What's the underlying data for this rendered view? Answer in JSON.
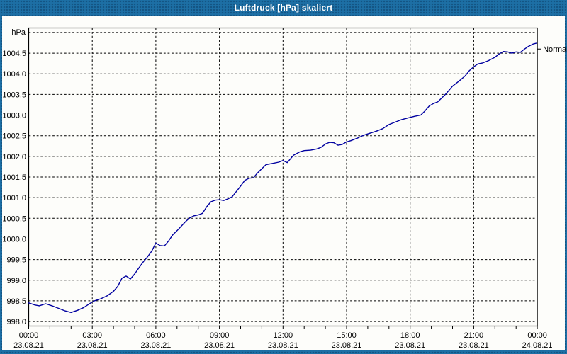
{
  "window": {
    "title": "Luftdruck [hPa] skaliert"
  },
  "colors": {
    "frame_blue": "#1d6fa5",
    "content_bg": "#fdfdfa",
    "grid_color": "#000000",
    "curve_color": "#0000a0",
    "title_text": "#ffffff",
    "label_color": "#000000"
  },
  "chart_data": {
    "type": "line",
    "title": "Luftdruck [hPa] skaliert",
    "ylabel": "hPa",
    "xlabel": "",
    "grid": true,
    "legend_position": "none",
    "ylim": [
      997.89,
      1005.11
    ],
    "ygrid_values": [
      998.0,
      998.5,
      999.0,
      999.5,
      1000.0,
      1000.5,
      1001.0,
      1001.5,
      1002.0,
      1002.5,
      1003.0,
      1003.5,
      1004.0,
      1004.5,
      1005.0
    ],
    "ytick_labels": [
      {
        "value": 998.0,
        "label": "998,0"
      },
      {
        "value": 998.5,
        "label": "998,5"
      },
      {
        "value": 999.0,
        "label": "999,0"
      },
      {
        "value": 999.5,
        "label": "999,5"
      },
      {
        "value": 1000.0,
        "label": "1000,0"
      },
      {
        "value": 1000.5,
        "label": "1000,5"
      },
      {
        "value": 1001.0,
        "label": "1001,0"
      },
      {
        "value": 1001.5,
        "label": "1001,5"
      },
      {
        "value": 1002.0,
        "label": "1002,0"
      },
      {
        "value": 1002.5,
        "label": "1002,5"
      },
      {
        "value": 1003.0,
        "label": "1003,0"
      },
      {
        "value": 1003.5,
        "label": "1003,5"
      },
      {
        "value": 1004.0,
        "label": "1004,0"
      },
      {
        "value": 1004.5,
        "label": "1004,5"
      }
    ],
    "x_hours_range": [
      0,
      24
    ],
    "minor_tick_every_hours": 1,
    "vgrid_every_hours": 3,
    "xticks": [
      {
        "hour": 0,
        "time": "00:00",
        "date": "23.08.21"
      },
      {
        "hour": 3,
        "time": "03:00",
        "date": "23.08.21"
      },
      {
        "hour": 6,
        "time": "06:00",
        "date": "23.08.21"
      },
      {
        "hour": 9,
        "time": "09:00",
        "date": "23.08.21"
      },
      {
        "hour": 12,
        "time": "12:00",
        "date": "23.08.21"
      },
      {
        "hour": 15,
        "time": "15:00",
        "date": "23.08.21"
      },
      {
        "hour": 18,
        "time": "18:00",
        "date": "23.08.21"
      },
      {
        "hour": 21,
        "time": "21:00",
        "date": "23.08.21"
      },
      {
        "hour": 24,
        "time": "00:00",
        "date": "24.08.21"
      }
    ],
    "annotations": [
      {
        "label": "Normal",
        "value": 1004.6,
        "side": "right"
      }
    ],
    "series": [
      {
        "name": "Luftdruck",
        "color": "#0000a0",
        "points": [
          [
            0.0,
            998.45
          ],
          [
            0.3,
            998.4
          ],
          [
            0.5,
            998.38
          ],
          [
            0.8,
            998.43
          ],
          [
            1.1,
            998.38
          ],
          [
            1.4,
            998.32
          ],
          [
            1.7,
            998.26
          ],
          [
            2.0,
            998.22
          ],
          [
            2.3,
            998.27
          ],
          [
            2.6,
            998.34
          ],
          [
            2.9,
            998.44
          ],
          [
            3.1,
            998.5
          ],
          [
            3.4,
            998.55
          ],
          [
            3.7,
            998.62
          ],
          [
            4.0,
            998.73
          ],
          [
            4.2,
            998.85
          ],
          [
            4.4,
            999.05
          ],
          [
            4.6,
            999.1
          ],
          [
            4.8,
            999.03
          ],
          [
            5.0,
            999.15
          ],
          [
            5.2,
            999.3
          ],
          [
            5.4,
            999.44
          ],
          [
            5.6,
            999.56
          ],
          [
            5.8,
            999.7
          ],
          [
            6.0,
            999.9
          ],
          [
            6.2,
            999.84
          ],
          [
            6.4,
            999.83
          ],
          [
            6.6,
            999.95
          ],
          [
            6.8,
            1000.1
          ],
          [
            7.0,
            1000.2
          ],
          [
            7.2,
            1000.31
          ],
          [
            7.4,
            1000.42
          ],
          [
            7.6,
            1000.51
          ],
          [
            7.8,
            1000.56
          ],
          [
            8.0,
            1000.58
          ],
          [
            8.2,
            1000.62
          ],
          [
            8.4,
            1000.78
          ],
          [
            8.6,
            1000.9
          ],
          [
            8.8,
            1000.94
          ],
          [
            9.0,
            1000.95
          ],
          [
            9.2,
            1000.93
          ],
          [
            9.4,
            1000.97
          ],
          [
            9.6,
            1001.02
          ],
          [
            9.8,
            1001.15
          ],
          [
            10.0,
            1001.28
          ],
          [
            10.2,
            1001.42
          ],
          [
            10.4,
            1001.47
          ],
          [
            10.6,
            1001.48
          ],
          [
            10.8,
            1001.6
          ],
          [
            11.0,
            1001.7
          ],
          [
            11.2,
            1001.8
          ],
          [
            11.5,
            1001.83
          ],
          [
            11.8,
            1001.86
          ],
          [
            12.0,
            1001.9
          ],
          [
            12.2,
            1001.85
          ],
          [
            12.5,
            1002.03
          ],
          [
            12.8,
            1002.11
          ],
          [
            13.0,
            1002.14
          ],
          [
            13.3,
            1002.15
          ],
          [
            13.6,
            1002.18
          ],
          [
            13.8,
            1002.22
          ],
          [
            14.0,
            1002.3
          ],
          [
            14.2,
            1002.34
          ],
          [
            14.4,
            1002.33
          ],
          [
            14.6,
            1002.27
          ],
          [
            14.8,
            1002.29
          ],
          [
            15.0,
            1002.35
          ],
          [
            15.2,
            1002.38
          ],
          [
            15.5,
            1002.44
          ],
          [
            15.8,
            1002.51
          ],
          [
            16.1,
            1002.56
          ],
          [
            16.4,
            1002.61
          ],
          [
            16.7,
            1002.67
          ],
          [
            17.0,
            1002.77
          ],
          [
            17.3,
            1002.83
          ],
          [
            17.6,
            1002.89
          ],
          [
            17.9,
            1002.93
          ],
          [
            18.2,
            1002.97
          ],
          [
            18.5,
            1003.0
          ],
          [
            18.7,
            1003.1
          ],
          [
            18.9,
            1003.22
          ],
          [
            19.1,
            1003.28
          ],
          [
            19.3,
            1003.32
          ],
          [
            19.5,
            1003.42
          ],
          [
            19.7,
            1003.52
          ],
          [
            20.0,
            1003.7
          ],
          [
            20.3,
            1003.82
          ],
          [
            20.6,
            1003.95
          ],
          [
            20.8,
            1004.08
          ],
          [
            21.0,
            1004.17
          ],
          [
            21.2,
            1004.24
          ],
          [
            21.4,
            1004.26
          ],
          [
            21.7,
            1004.32
          ],
          [
            22.0,
            1004.4
          ],
          [
            22.2,
            1004.48
          ],
          [
            22.4,
            1004.54
          ],
          [
            22.6,
            1004.53
          ],
          [
            22.8,
            1004.5
          ],
          [
            23.0,
            1004.53
          ],
          [
            23.2,
            1004.52
          ],
          [
            23.4,
            1004.6
          ],
          [
            23.6,
            1004.67
          ],
          [
            23.8,
            1004.72
          ],
          [
            23.95,
            1004.74
          ]
        ]
      }
    ]
  }
}
